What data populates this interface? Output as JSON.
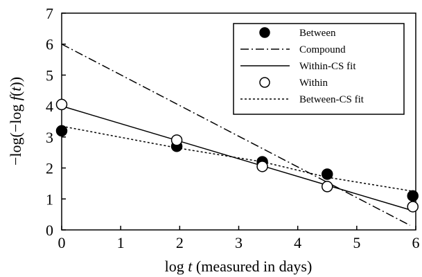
{
  "chart_data": {
    "type": "scatter",
    "xlabel": {
      "prefix": "log ",
      "var": "t",
      "suffix": " (measured in days)"
    },
    "ylabel": {
      "open": "−log(−log ",
      "func": "f",
      "arg_open": "(",
      "var": "t",
      "close": "))"
    },
    "xlim": [
      0,
      6
    ],
    "ylim": [
      0,
      7
    ],
    "xticks": [
      0,
      1,
      2,
      3,
      4,
      5,
      6
    ],
    "yticks": [
      0,
      1,
      2,
      3,
      4,
      5,
      6,
      7
    ],
    "legend_position": "top-right",
    "series": [
      {
        "name": "Between",
        "kind": "points",
        "marker": "filled-circle",
        "x": [
          0,
          1.95,
          3.4,
          4.5,
          5.95
        ],
        "y": [
          3.2,
          2.7,
          2.2,
          1.8,
          1.1
        ]
      },
      {
        "name": "Compound",
        "kind": "line",
        "style": "dash-dot",
        "x": [
          0,
          5.9
        ],
        "y": [
          6.0,
          0.15
        ]
      },
      {
        "name": "Within-CS fit",
        "kind": "line",
        "style": "solid",
        "x": [
          0,
          5.95
        ],
        "y": [
          4.0,
          0.62
        ]
      },
      {
        "name": "Within",
        "kind": "points",
        "marker": "open-circle",
        "x": [
          0,
          1.95,
          3.4,
          4.5,
          5.95
        ],
        "y": [
          4.05,
          2.9,
          2.05,
          1.4,
          0.75
        ]
      },
      {
        "name": "Between-CS fit",
        "kind": "line",
        "style": "dotted",
        "x": [
          0,
          1.95,
          3.4,
          4.5,
          5.95
        ],
        "y": [
          3.35,
          2.65,
          2.2,
          1.7,
          1.25
        ]
      }
    ]
  }
}
